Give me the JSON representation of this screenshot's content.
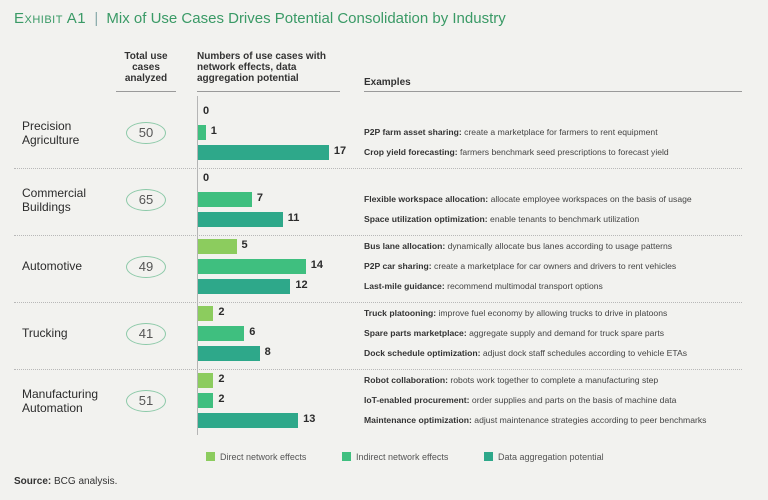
{
  "title": {
    "exhibit": "Exhibit A1",
    "separator": "|",
    "text": "Mix of Use Cases Drives Potential Consolidation by Industry"
  },
  "headers": {
    "total": "Total use cases analyzed",
    "numbers": "Numbers of use cases with network effects, data aggregation potential",
    "examples": "Examples"
  },
  "colors": {
    "direct": "#8ccc5e",
    "indirect": "#3fbf7f",
    "aggregation": "#2ea88a",
    "accent": "#3a9a66"
  },
  "chart_data": {
    "type": "bar",
    "orientation": "horizontal",
    "title": "Mix of Use Cases Drives Potential Consolidation by Industry",
    "series_names": [
      "Direct network effects",
      "Indirect network effects",
      "Data aggregation potential"
    ],
    "categories": [
      {
        "label": "Precision Agriculture",
        "label_lines": [
          "Precision",
          "Agriculture"
        ],
        "total": "50",
        "values": [
          0,
          1,
          17
        ],
        "examples": [
          {
            "bold": "",
            "text": ""
          },
          {
            "bold": "P2P farm asset sharing:",
            "text": " create a marketplace for farmers to rent equipment"
          },
          {
            "bold": "Crop yield forecasting:",
            "text": " farmers benchmark seed prescriptions to forecast yield"
          }
        ]
      },
      {
        "label": "Commercial Buildings",
        "label_lines": [
          "Commercial",
          "Buildings"
        ],
        "total": "65",
        "values": [
          0,
          7,
          11
        ],
        "examples": [
          {
            "bold": "",
            "text": ""
          },
          {
            "bold": "Flexible workspace allocation:",
            "text": " allocate employee workspaces on the basis of usage"
          },
          {
            "bold": "Space utilization optimization:",
            "text": " enable tenants to benchmark utilization"
          }
        ]
      },
      {
        "label": "Automotive",
        "label_lines": [
          "Automotive",
          ""
        ],
        "total": "49",
        "values": [
          5,
          14,
          12
        ],
        "examples": [
          {
            "bold": "Bus lane allocation:",
            "text": " dynamically allocate bus lanes according to usage patterns"
          },
          {
            "bold": "P2P car sharing:",
            "text": " create a marketplace for car owners and drivers to rent vehicles"
          },
          {
            "bold": "Last-mile guidance:",
            "text": " recommend multimodal transport options"
          }
        ]
      },
      {
        "label": "Trucking",
        "label_lines": [
          "Trucking",
          ""
        ],
        "total": "41",
        "values": [
          2,
          6,
          8
        ],
        "examples": [
          {
            "bold": "Truck platooning:",
            "text": " improve fuel economy by allowing trucks to drive in platoons"
          },
          {
            "bold": "Spare parts marketplace:",
            "text": " aggregate supply and demand for truck spare parts"
          },
          {
            "bold": "Dock schedule optimization:",
            "text": " adjust dock staff schedules according to vehicle ETAs"
          }
        ]
      },
      {
        "label": "Manufacturing Automation",
        "label_lines": [
          "Manufacturing",
          "Automation"
        ],
        "total": "51",
        "values": [
          2,
          2,
          13
        ],
        "examples": [
          {
            "bold": "Robot collaboration:",
            "text": " robots work together to complete a manufacturing step"
          },
          {
            "bold": "IoT-enabled procurement:",
            "text": " order supplies and parts on the basis of machine data"
          },
          {
            "bold": "Maintenance optimization:",
            "text": " adjust maintenance strategies according to peer benchmarks"
          }
        ]
      }
    ],
    "legend": [
      "Direct network effects",
      "Indirect network effects",
      "Data aggregation potential"
    ],
    "xlim": [
      0,
      17
    ]
  },
  "source": {
    "label": "Source:",
    "text": " BCG analysis."
  }
}
